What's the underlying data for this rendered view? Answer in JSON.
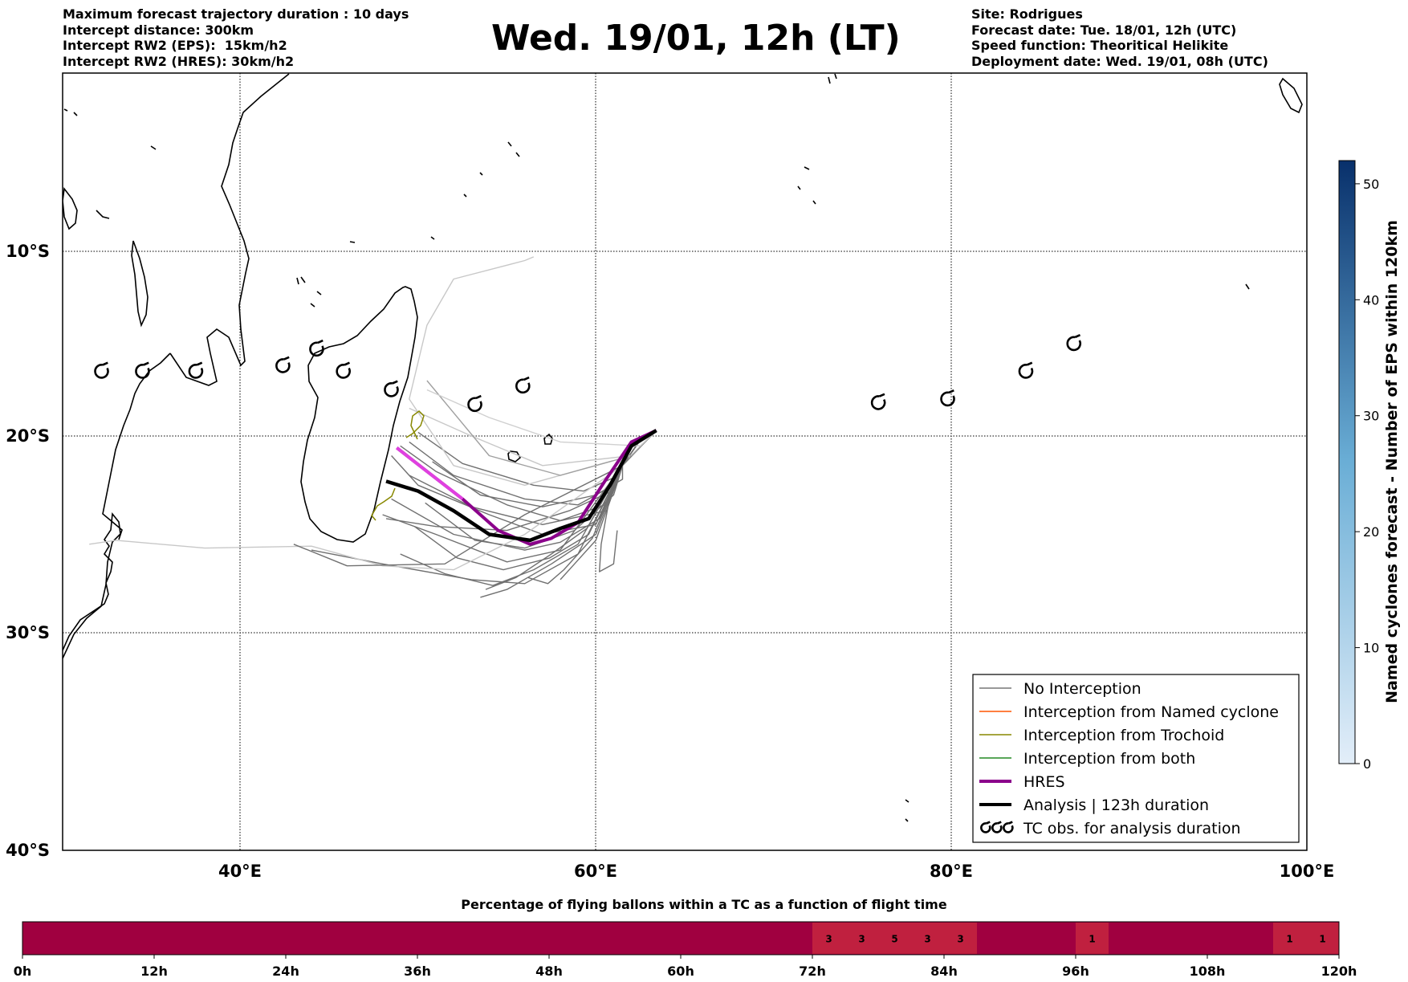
{
  "header_left": [
    "Maximum forecast trajectory duration : 10 days",
    "Intercept distance: 300km",
    "Intercept RW2 (EPS):  15km/h2",
    "Intercept RW2 (HRES): 30km/h2"
  ],
  "header_right": [
    "Site: Rodrigues",
    "Forecast date: Tue. 18/01, 12h (UTC)",
    "Speed function: Theoritical Helikite",
    "Deployment date: Wed. 19/01, 08h (UTC)"
  ],
  "title": "Wed. 19/01, 12h (LT)",
  "map": {
    "lon_range": [
      30,
      100
    ],
    "lat_range": [
      -40,
      0
    ],
    "lon_ticks": [
      "40°E",
      "60°E",
      "80°E",
      "100°E"
    ],
    "lat_ticks": [
      "10°S",
      "20°S",
      "30°S",
      "40°S"
    ],
    "grid": true
  },
  "legend": [
    {
      "label": "No Interception",
      "color": "#777777"
    },
    {
      "label": "Interception from Named cyclone",
      "color": "#ff5500"
    },
    {
      "label": "Interception from Trochoid",
      "color": "#888800"
    },
    {
      "label": "Interception from both",
      "color": "#228822"
    },
    {
      "label": "HRES",
      "color": "#8b008b"
    },
    {
      "label": "Analysis | 123h duration",
      "color": "#000000"
    },
    {
      "label": "TC obs. for analysis duration",
      "color": "#000000",
      "icon": "cyclone-symbol-icon"
    }
  ],
  "colorbar": {
    "label": "Named cyclones forecast - Number of EPS within 120km",
    "ticks": [
      "0",
      "10",
      "20",
      "30",
      "40",
      "50"
    ],
    "min": 0,
    "max": 52,
    "color_low": "#e3eef9",
    "color_high": "#08306b"
  },
  "percentage_bar": {
    "title": "Percentage of flying ballons within a TC as a function of flight time",
    "ticks": [
      "0h",
      "12h",
      "24h",
      "36h",
      "48h",
      "60h",
      "72h",
      "84h",
      "96h",
      "108h",
      "120h"
    ],
    "base_color": "#a00040",
    "highlight_color": "#c0203f",
    "cells": [
      {
        "hour": 72,
        "value": "3"
      },
      {
        "hour": 75,
        "value": "3"
      },
      {
        "hour": 78,
        "value": "5"
      },
      {
        "hour": 81,
        "value": "3"
      },
      {
        "hour": 84,
        "value": "3"
      },
      {
        "hour": 96,
        "value": "1"
      },
      {
        "hour": 114,
        "value": "1"
      },
      {
        "hour": 117,
        "value": "1"
      }
    ]
  },
  "chart_data": {
    "type": "line",
    "site": "Rodrigues",
    "start_point": {
      "lon": 63.4,
      "lat": -19.7
    },
    "series": [
      {
        "name": "HRES",
        "color": "#8b008b",
        "points": [
          [
            63.4,
            -19.7
          ],
          [
            62,
            -20.3
          ],
          [
            60.5,
            -22.3
          ],
          [
            59,
            -24.4
          ],
          [
            57.5,
            -25.2
          ],
          [
            56.3,
            -25.5
          ],
          [
            54.5,
            -24.8
          ],
          [
            52.5,
            -23.2
          ],
          [
            50.5,
            -21.8
          ],
          [
            48.8,
            -20.6
          ]
        ]
      },
      {
        "name": "Analysis | 123h duration",
        "color": "#000000",
        "points": [
          [
            63.4,
            -19.7
          ],
          [
            62,
            -20.5
          ],
          [
            60.8,
            -22.5
          ],
          [
            59.6,
            -24.2
          ],
          [
            58,
            -24.7
          ],
          [
            56.3,
            -25.3
          ],
          [
            54,
            -25
          ],
          [
            52,
            -23.8
          ],
          [
            50,
            -22.8
          ],
          [
            48.2,
            -22.3
          ]
        ]
      }
    ],
    "tc_observations": [
      [
        32.2,
        -16.5
      ],
      [
        34.5,
        -16.5
      ],
      [
        37.5,
        -16.5
      ],
      [
        42.4,
        -16.2
      ],
      [
        44.3,
        -15.3
      ],
      [
        45.8,
        -16.5
      ],
      [
        48.5,
        -17.5
      ],
      [
        53.2,
        -18.3
      ],
      [
        55.9,
        -17.3
      ],
      [
        75.9,
        -18.2
      ],
      [
        79.8,
        -18
      ],
      [
        84.2,
        -16.5
      ],
      [
        86.9,
        -15
      ]
    ]
  }
}
